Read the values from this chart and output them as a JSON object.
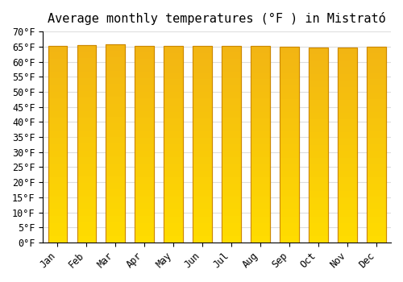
{
  "title": "Average monthly temperatures (°F ) in Mistrató",
  "months": [
    "Jan",
    "Feb",
    "Mar",
    "Apr",
    "May",
    "Jun",
    "Jul",
    "Aug",
    "Sep",
    "Oct",
    "Nov",
    "Dec"
  ],
  "values": [
    65.3,
    65.5,
    65.8,
    65.3,
    65.1,
    65.1,
    65.3,
    65.1,
    65.0,
    64.6,
    64.6,
    65.0
  ],
  "bar_color_top": "#FFA500",
  "bar_color_bottom": "#FFD700",
  "ylim": [
    0,
    70
  ],
  "yticks": [
    0,
    5,
    10,
    15,
    20,
    25,
    30,
    35,
    40,
    45,
    50,
    55,
    60,
    65,
    70
  ],
  "ytick_labels": [
    "0°F",
    "5°F",
    "10°F",
    "15°F",
    "20°F",
    "25°F",
    "30°F",
    "35°F",
    "40°F",
    "45°F",
    "50°F",
    "55°F",
    "60°F",
    "65°F",
    "70°F"
  ],
  "background_color": "#ffffff",
  "grid_color": "#dddddd",
  "title_fontsize": 11,
  "tick_fontsize": 8.5,
  "bar_edge_color": "#cc8800",
  "bar_width": 0.65
}
